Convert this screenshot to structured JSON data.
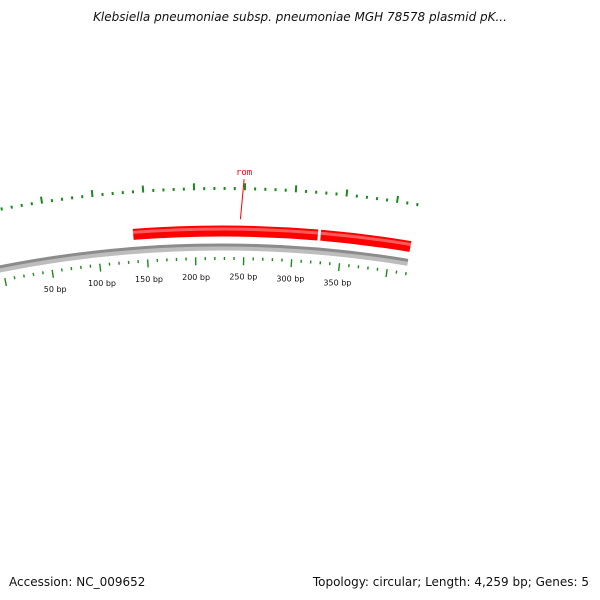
{
  "title": "Klebsiella pneumoniae subsp. pneumoniae MGH 78578 plasmid pK...",
  "footer": {
    "accession": "Accession: NC_009652",
    "summary": "Topology: circular; Length: 4,259 bp; Genes: 5"
  },
  "map": {
    "topology": "circular",
    "length_bp": 4259,
    "backbone_color": "#8c8c8c",
    "tick_color": "#1a8a1a",
    "gene_color": "#ff0000",
    "scale_labels": [
      {
        "bp": 50,
        "label": "50 bp"
      },
      {
        "bp": 100,
        "label": "100 bp"
      },
      {
        "bp": 150,
        "label": "150 bp"
      },
      {
        "bp": 200,
        "label": "200 bp"
      },
      {
        "bp": 250,
        "label": "250 bp"
      },
      {
        "bp": 300,
        "label": "300 bp"
      },
      {
        "bp": 350,
        "label": "350 bp"
      }
    ],
    "genes": [
      {
        "name": "rom",
        "start_bp": 137,
        "end_bp": 325,
        "strand": "forward",
        "label_visible": true
      },
      {
        "name": "",
        "start_bp": 328,
        "end_bp": 420,
        "strand": "forward",
        "label_visible": false
      }
    ]
  }
}
